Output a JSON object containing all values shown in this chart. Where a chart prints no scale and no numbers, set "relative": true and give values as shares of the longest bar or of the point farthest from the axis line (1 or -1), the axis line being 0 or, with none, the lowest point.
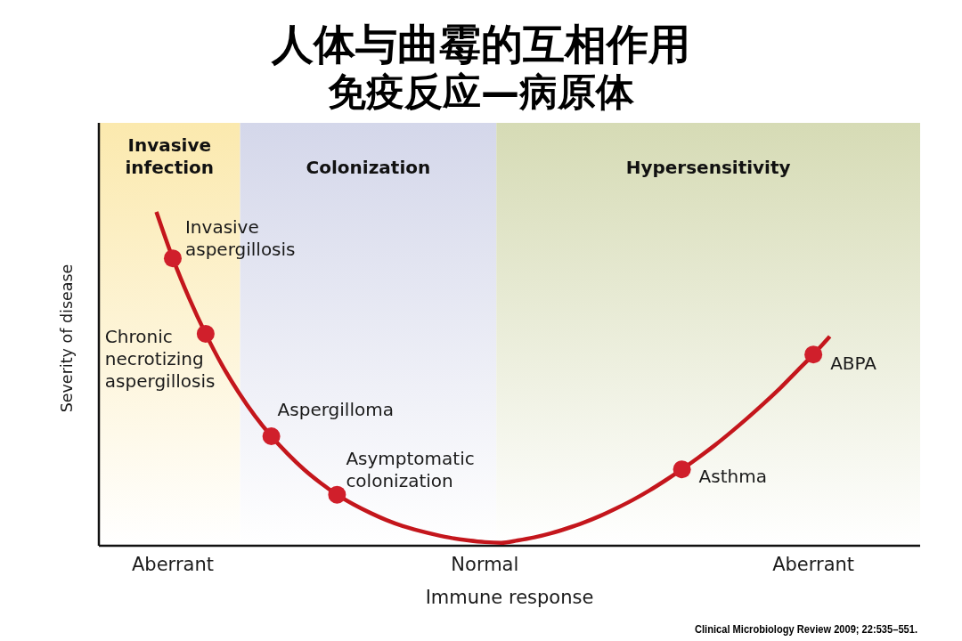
{
  "chart_data": {
    "type": "line",
    "title": "人体与曲霉的互相作用",
    "subtitle": "免疫反应—病原体",
    "xlabel": "Immune response",
    "ylabel": "Severity of disease",
    "relative": true,
    "tick_labels": "x",
    "categories": [
      null,
      null,
      null,
      null,
      "Aberrant",
      null,
      null,
      null,
      null,
      null,
      null,
      null,
      null,
      null,
      null,
      null,
      null,
      null,
      null,
      null,
      null,
      null,
      null,
      "Normal",
      null,
      null,
      null,
      null,
      null,
      null,
      null,
      null,
      null,
      null,
      null,
      null,
      null,
      null,
      null,
      null,
      null,
      null,
      null,
      "Aberrant",
      null,
      null,
      null,
      null,
      null,
      null
    ],
    "series": [
      {
        "color": "#c4161c",
        "values": [
          null,
          null,
          null,
          1.0,
          0.861,
          0.741,
          0.635,
          0.541,
          0.46,
          0.389,
          0.328,
          0.275,
          0.228,
          0.188,
          0.153,
          0.124,
          0.099,
          0.077,
          0.059,
          0.045,
          0.033,
          0.023,
          0.016,
          0.011,
          0.009,
          0.016,
          0.025,
          0.037,
          0.052,
          0.069,
          0.089,
          0.112,
          0.137,
          0.165,
          0.196,
          0.229,
          0.264,
          0.301,
          0.341,
          0.383,
          0.427,
          0.473,
          0.523,
          0.573,
          0.627,
          null,
          null,
          null,
          null,
          null
        ]
      },
      {
        "type": "scatter",
        "color": "#d01f2b",
        "marker": "circle",
        "values": [
          null,
          null,
          null,
          null,
          0.861,
          null,
          0.635,
          null,
          null,
          null,
          0.328,
          null,
          null,
          null,
          0.153,
          null,
          null,
          null,
          null,
          null,
          null,
          null,
          null,
          null,
          null,
          null,
          null,
          null,
          null,
          null,
          null,
          null,
          null,
          null,
          null,
          0.229,
          null,
          null,
          null,
          null,
          null,
          null,
          null,
          0.573,
          null,
          null,
          null,
          null,
          null,
          null
        ]
      }
    ],
    "annotations": [
      "Invasive infection",
      "Colonization",
      "Hypersensitivity",
      "Invasive aspergillosis",
      "Chronic necrotizing aspergillosis",
      "Aspergilloma",
      "Asymptomatic colonization",
      "Asthma",
      "ABPA",
      "Clinical Microbiology Review 2009; 22:535–551."
    ]
  }
}
